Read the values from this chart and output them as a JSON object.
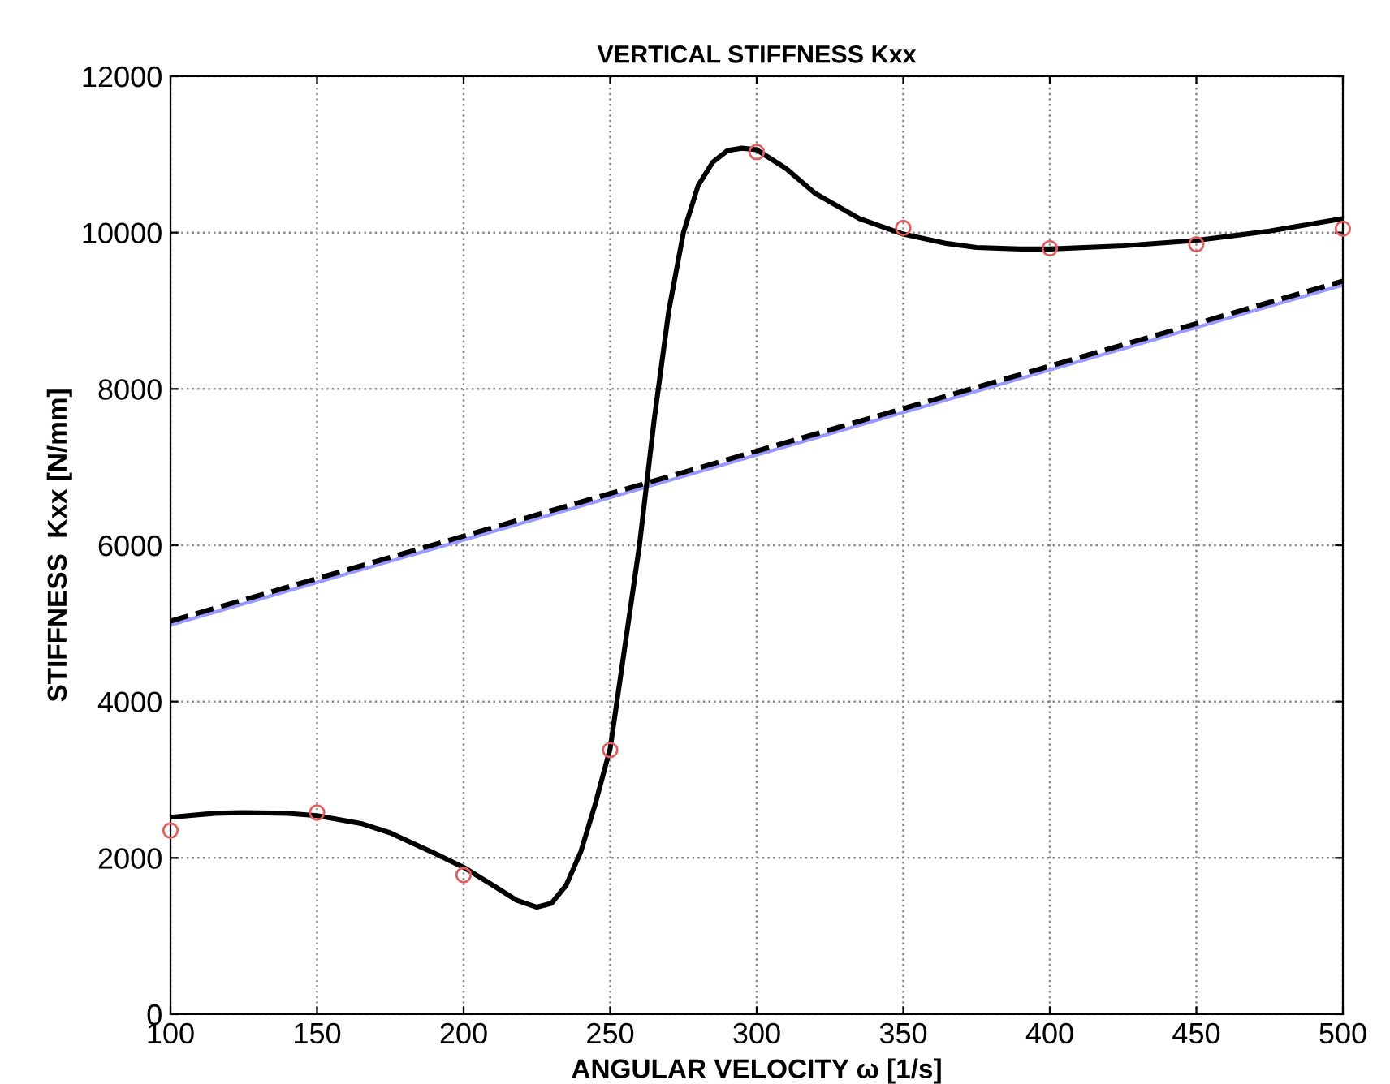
{
  "chart_data": {
    "type": "line",
    "title": "VERTICAL STIFFNESS Kxx",
    "xlabel": "ANGULAR VELOCITY ω [1/s]",
    "ylabel": "STIFFNESS  Kxx [N/mm]",
    "xlim": [
      100,
      500
    ],
    "xticks": [
      100,
      150,
      200,
      250,
      300,
      350,
      400,
      450,
      500
    ],
    "ylim": [
      0,
      12000
    ],
    "yticks": [
      0,
      2000,
      4000,
      6000,
      8000,
      10000,
      12000
    ],
    "grid": true,
    "series": [
      {
        "color": "#9999ff",
        "line_style": "solid",
        "marker": "none",
        "x": [
          100,
          500
        ],
        "values": [
          4980,
          9330
        ]
      },
      {
        "color": "#000000",
        "line_style": "dashed",
        "marker": "none",
        "x": [
          100,
          500
        ],
        "values": [
          5030,
          9380
        ]
      },
      {
        "color": "#000000",
        "line_style": "solid",
        "marker": "none",
        "x": [
          100,
          115,
          125,
          140,
          150,
          165,
          175,
          190,
          200,
          210,
          218,
          225,
          230,
          235,
          240,
          245,
          250,
          255,
          260,
          265,
          270,
          275,
          280,
          285,
          290,
          295,
          300,
          310,
          320,
          335,
          350,
          365,
          375,
          390,
          400,
          425,
          450,
          475,
          500
        ],
        "values": [
          2520,
          2570,
          2580,
          2570,
          2540,
          2440,
          2320,
          2060,
          1880,
          1650,
          1460,
          1370,
          1420,
          1650,
          2080,
          2700,
          3400,
          4700,
          6000,
          7600,
          9000,
          10000,
          10600,
          10900,
          11050,
          11080,
          11060,
          10820,
          10500,
          10180,
          9980,
          9860,
          9810,
          9790,
          9790,
          9830,
          9900,
          10020,
          10180
        ]
      },
      {
        "type": "scatter",
        "color": "#e06060",
        "marker": "circle",
        "x": [
          100,
          150,
          200,
          250,
          300,
          350,
          400,
          450,
          500
        ],
        "values": [
          2350,
          2580,
          1780,
          3380,
          11030,
          10060,
          9800,
          9850,
          10050
        ]
      }
    ]
  }
}
